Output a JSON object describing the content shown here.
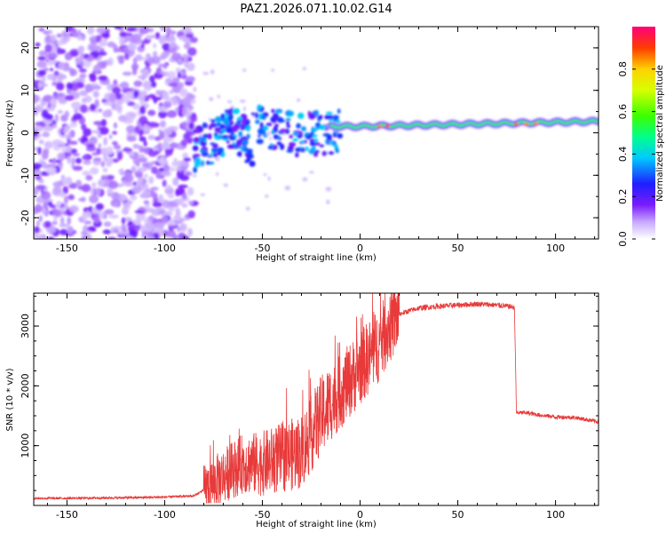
{
  "title": "PAZ1.2026.071.10.02.G14",
  "colorbar": {
    "label": "Normalized spectral amplitude",
    "ticks": [
      0.0,
      0.2,
      0.4,
      0.6,
      0.8
    ],
    "tick_labels": [
      "0.0",
      "0.2",
      "0.4",
      "0.6",
      "0.8"
    ],
    "range": [
      0,
      1
    ]
  },
  "chart_data": [
    {
      "type": "heatmap",
      "name": "spectrogram",
      "xlabel": "Height of straight line (km)",
      "ylabel": "Frequency (Hz)",
      "xlim": [
        -167,
        122
      ],
      "ylim": [
        -25,
        25
      ],
      "xticks": [
        -150,
        -100,
        -50,
        0,
        50,
        100
      ],
      "xtick_labels": [
        "-150",
        "-100",
        "-50",
        "0",
        "50",
        "100"
      ],
      "yticks": [
        -20,
        -10,
        0,
        10,
        20
      ],
      "ytick_labels": [
        "-20",
        "-10",
        "0",
        "10",
        "20"
      ],
      "regions": [
        {
          "description": "noise",
          "x_range": [
            -167,
            -85
          ],
          "freq_range": [
            -25,
            25
          ],
          "amplitude": 0.15
        },
        {
          "description": "occultation signal band",
          "x_range": [
            -85,
            122
          ],
          "freq_center_start": -5,
          "freq_center_end": 2.5,
          "amplitude": 0.55
        }
      ]
    },
    {
      "type": "line",
      "name": "snr",
      "xlabel": "Height of straight line (km)",
      "ylabel": "SNR (10 * v/v)",
      "xlim": [
        -167,
        122
      ],
      "ylim": [
        0,
        3550
      ],
      "xticks": [
        -150,
        -100,
        -50,
        0,
        50,
        100
      ],
      "xtick_labels": [
        "-150",
        "-100",
        "-50",
        "0",
        "50",
        "100"
      ],
      "yticks": [
        1000,
        2000,
        3000
      ],
      "ytick_labels": [
        "1000",
        "2000",
        "3000"
      ],
      "series": [
        {
          "name": "SNR",
          "color": "#e83a3a",
          "x": [
            -167,
            -150,
            -120,
            -100,
            -85,
            -78,
            -70,
            -60,
            -50,
            -40,
            -30,
            -20,
            -15,
            -10,
            -5,
            0,
            5,
            10,
            15,
            20,
            25,
            30,
            40,
            50,
            60,
            70,
            78,
            79,
            80,
            85,
            90,
            100,
            110,
            122
          ],
          "y": [
            120,
            120,
            130,
            140,
            160,
            300,
            500,
            700,
            700,
            800,
            900,
            1500,
            1700,
            1900,
            2100,
            2300,
            2500,
            2700,
            3000,
            3200,
            3250,
            3300,
            3330,
            3350,
            3370,
            3350,
            3320,
            3300,
            1550,
            1550,
            1520,
            1480,
            1470,
            1400
          ]
        }
      ]
    }
  ]
}
